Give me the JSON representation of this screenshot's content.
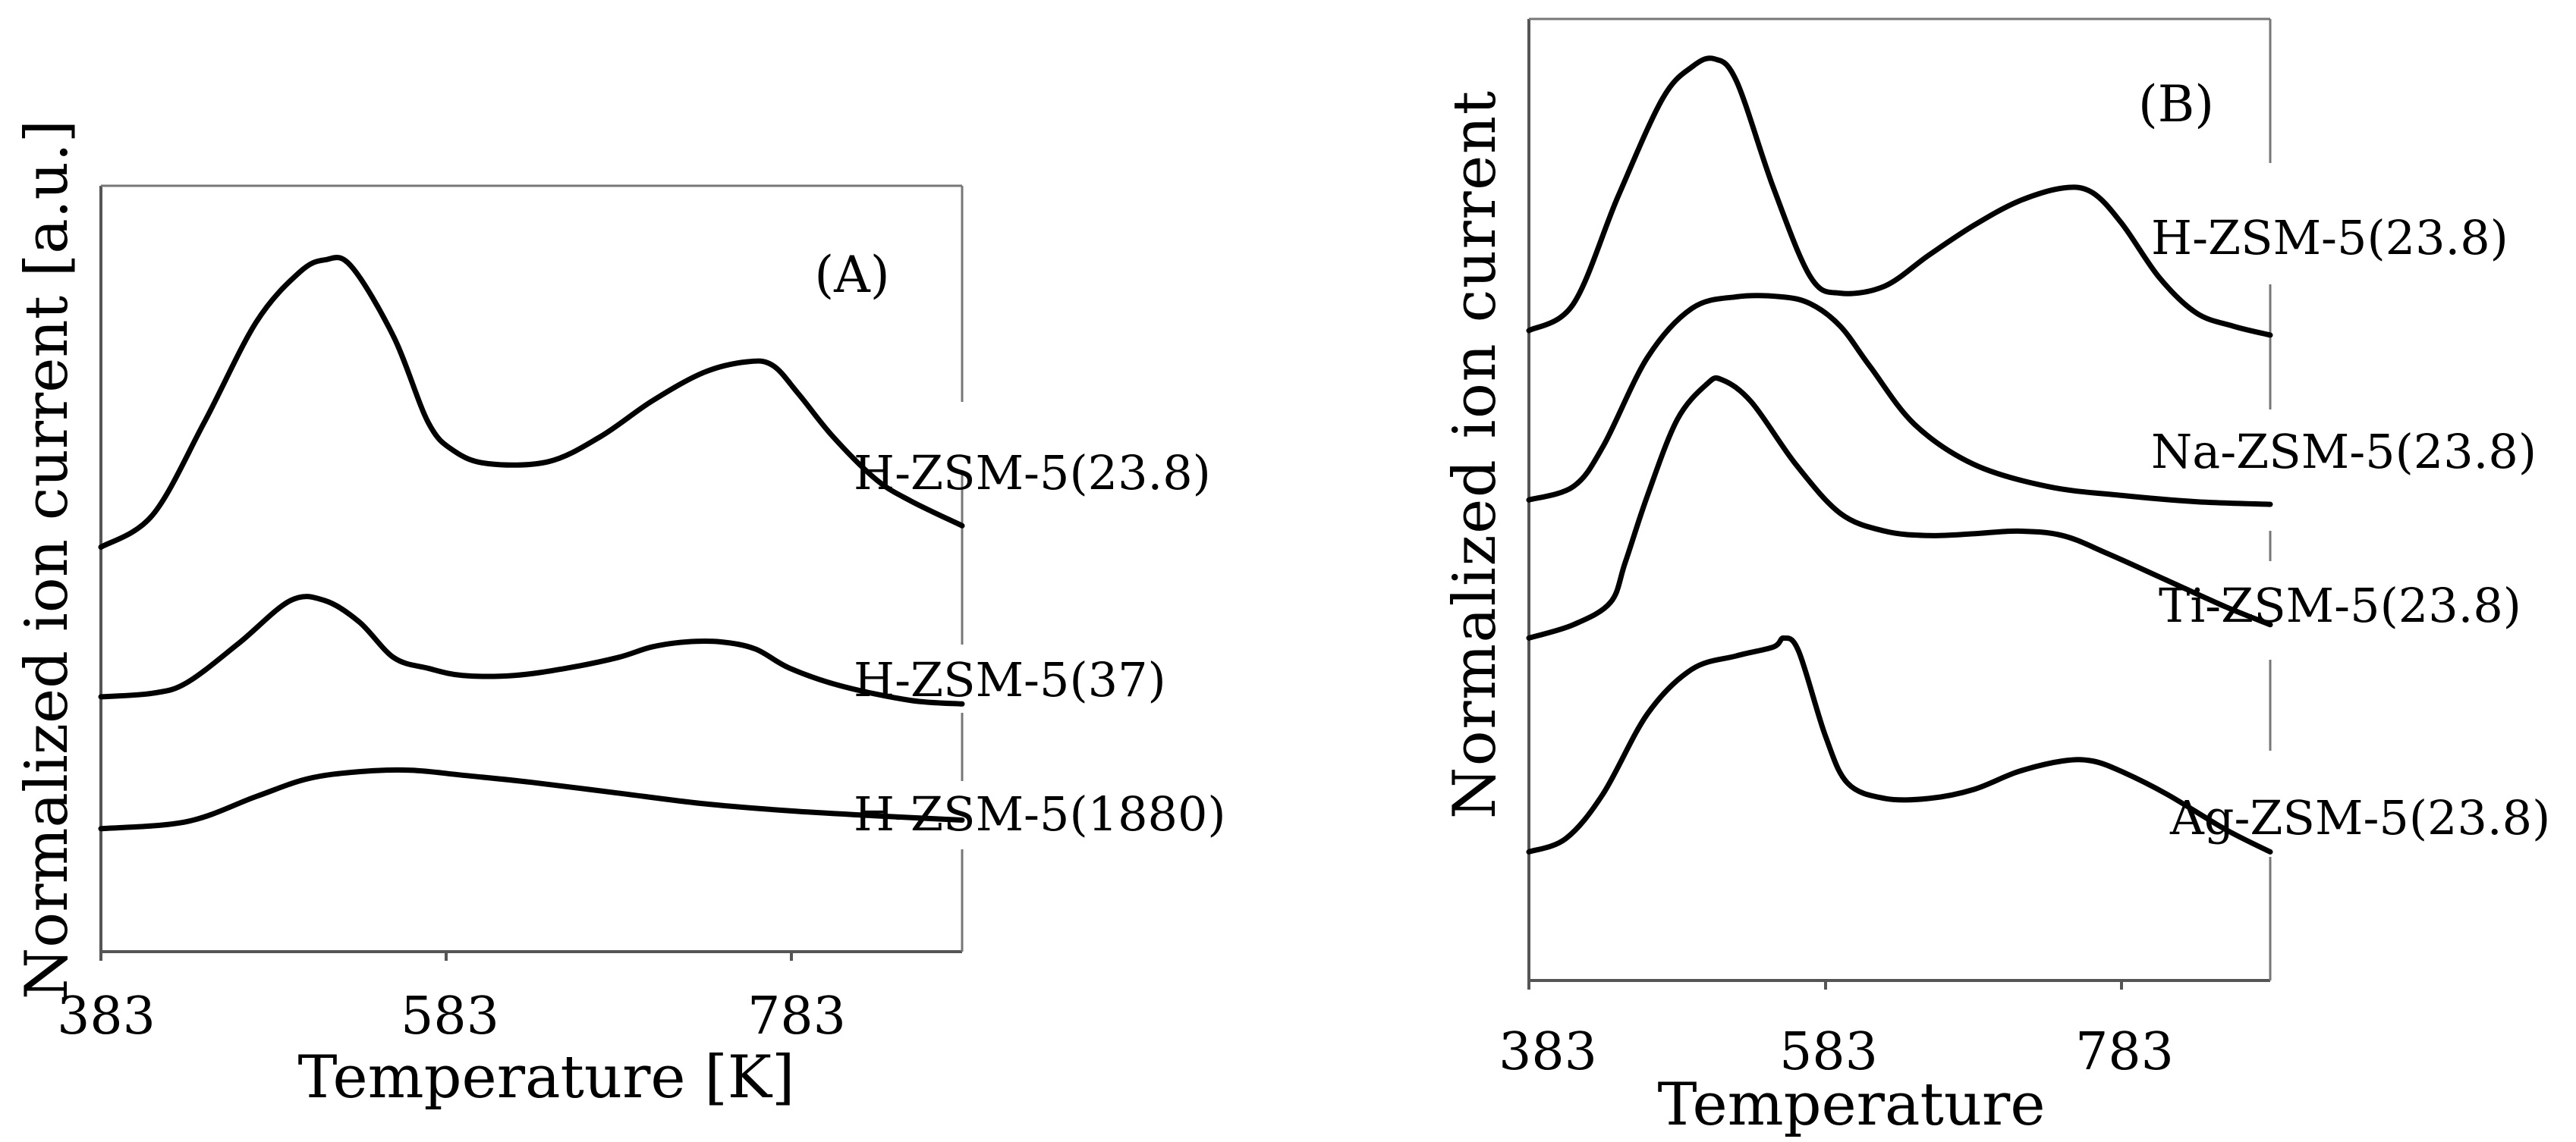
{
  "chart_data": [
    {
      "type": "line",
      "panel": "(A)",
      "xlabel": "Temperature [K]",
      "ylabel": "Normalized ion current [a.u.]",
      "xticks": [
        "383",
        "583",
        "783"
      ],
      "xlim": [
        383,
        883
      ],
      "ylim": [
        0,
        10
      ],
      "grid": false,
      "series": [
        {
          "name": "H-ZSM-5(23.8)",
          "x": [
            383,
            413,
            443,
            473,
            498,
            513,
            528,
            553,
            573,
            588,
            608,
            643,
            673,
            703,
            733,
            758,
            773,
            788,
            808,
            833,
            853,
            883
          ],
          "y": [
            5.25,
            5.7,
            7.0,
            8.4,
            9.1,
            9.28,
            9.2,
            8.2,
            7.0,
            6.6,
            6.42,
            6.45,
            6.8,
            7.3,
            7.7,
            7.85,
            7.8,
            7.4,
            6.8,
            6.2,
            5.9,
            5.55
          ]
        },
        {
          "name": "H-ZSM-5(37)",
          "x": [
            383,
            413,
            433,
            463,
            493,
            513,
            533,
            553,
            573,
            593,
            623,
            653,
            683,
            703,
            723,
            743,
            763,
            783,
            813,
            853,
            883
          ],
          "y": [
            3.15,
            3.2,
            3.35,
            3.9,
            4.5,
            4.5,
            4.2,
            3.7,
            3.55,
            3.45,
            3.45,
            3.55,
            3.7,
            3.85,
            3.92,
            3.92,
            3.82,
            3.55,
            3.3,
            3.1,
            3.05
          ]
        },
        {
          "name": "H-ZSM-5(1880)",
          "x": [
            383,
            433,
            473,
            503,
            533,
            563,
            593,
            633,
            683,
            733,
            783,
            833,
            883
          ],
          "y": [
            1.3,
            1.4,
            1.75,
            2.0,
            2.1,
            2.12,
            2.05,
            1.95,
            1.8,
            1.65,
            1.55,
            1.48,
            1.42
          ]
        }
      ]
    },
    {
      "type": "line",
      "panel": "(B)",
      "xlabel": "Temperature",
      "ylabel": "Normalized ion current",
      "xticks": [
        "383",
        "583",
        "783"
      ],
      "xlim": [
        383,
        883
      ],
      "ylim": [
        0,
        10
      ],
      "grid": false,
      "series": [
        {
          "name": "H-ZSM-5(23.8)",
          "x": [
            383,
            413,
            443,
            473,
            493,
            508,
            523,
            548,
            573,
            593,
            623,
            653,
            683,
            713,
            743,
            763,
            783,
            808,
            833,
            858,
            883
          ],
          "y": [
            6.8,
            7.1,
            8.3,
            9.4,
            9.76,
            9.85,
            9.6,
            8.4,
            7.4,
            7.22,
            7.3,
            7.65,
            7.98,
            8.25,
            8.4,
            8.35,
            8.0,
            7.4,
            7.0,
            6.85,
            6.75
          ]
        },
        {
          "name": "Na-ZSM-5(23.8)",
          "x": [
            383,
            413,
            433,
            463,
            493,
            523,
            553,
            573,
            593,
            613,
            643,
            683,
            733,
            783,
            833,
            883
          ],
          "y": [
            4.9,
            5.05,
            5.5,
            6.5,
            7.05,
            7.18,
            7.18,
            7.1,
            6.85,
            6.4,
            5.75,
            5.3,
            5.05,
            4.95,
            4.88,
            4.85
          ]
        },
        {
          "name": "Ti-ZSM-5(23.8)",
          "x": [
            383,
            413,
            438,
            448,
            463,
            483,
            503,
            513,
            533,
            563,
            593,
            623,
            653,
            683,
            713,
            743,
            773,
            813,
            853,
            883
          ],
          "y": [
            3.35,
            3.5,
            3.75,
            4.2,
            4.95,
            5.8,
            6.2,
            6.25,
            6.0,
            5.3,
            4.75,
            4.55,
            4.5,
            4.52,
            4.55,
            4.5,
            4.3,
            4.0,
            3.7,
            3.5
          ]
        },
        {
          "name": "Ag-ZSM-5(23.8)",
          "x": [
            383,
            408,
            433,
            463,
            493,
            523,
            548,
            555,
            565,
            583,
            598,
            623,
            653,
            683,
            713,
            743,
            763,
            783,
            813,
            853,
            883
          ],
          "y": [
            0.95,
            1.1,
            1.6,
            2.5,
            3.0,
            3.15,
            3.25,
            3.35,
            3.2,
            2.25,
            1.72,
            1.55,
            1.55,
            1.65,
            1.85,
            1.97,
            1.97,
            1.85,
            1.6,
            1.2,
            0.95
          ]
        }
      ]
    }
  ]
}
